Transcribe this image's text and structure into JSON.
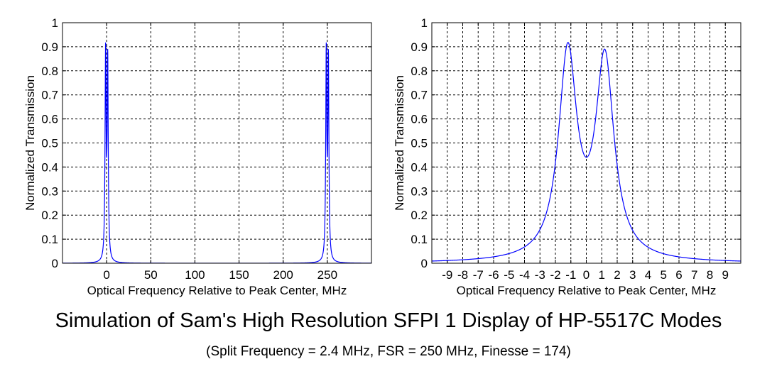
{
  "title": "Simulation of Sam's High Resolution SFPI 1 Display of HP-5517C Modes",
  "subtitle": "(Split Frequency = 2.4 MHz, FSR = 250 MHz, Finesse = 174)",
  "colors": {
    "curve": "#0000ff",
    "axes": "#000000",
    "grid": "#000000",
    "background": "#ffffff"
  },
  "chart_data": [
    {
      "type": "line",
      "xlabel": "Optical Frequency Relative to Peak Center, MHz",
      "ylabel": "Normalized Transmission",
      "xlim": [
        -50,
        300
      ],
      "ylim": [
        0,
        1
      ],
      "xticks": [
        0,
        50,
        100,
        150,
        200,
        250
      ],
      "xtick_labels": [
        "0",
        "50",
        "100",
        "150",
        "200",
        "250"
      ],
      "yticks": [
        0,
        0.1,
        0.2,
        0.3,
        0.4,
        0.5,
        0.6,
        0.7,
        0.8,
        0.9,
        1
      ],
      "ytick_labels": [
        "0",
        "0.1",
        "0.2",
        "0.3",
        "0.4",
        "0.5",
        "0.6",
        "0.7",
        "0.8",
        "0.9",
        "1"
      ],
      "grid": true,
      "series": [
        {
          "name": "transmission",
          "model": "airy_doublet",
          "split_mhz": 2.4,
          "fsr_mhz": 250,
          "finesse": 174,
          "amplitudes": [
            0.85,
            0.82
          ],
          "peaks": [
            {
              "x": -1.2,
              "y": 0.92
            },
            {
              "x": 1.2,
              "y": 0.89
            },
            {
              "x": 248.8,
              "y": 0.92
            },
            {
              "x": 251.2,
              "y": 0.89
            }
          ]
        }
      ]
    },
    {
      "type": "line",
      "xlabel": "Optical Frequency Relative to Peak Center, MHz",
      "ylabel": "Normalized Transmission",
      "xlim": [
        -10,
        10
      ],
      "ylim": [
        0,
        1
      ],
      "xticks": [
        -9,
        -8,
        -7,
        -6,
        -5,
        -4,
        -3,
        -2,
        -1,
        0,
        1,
        2,
        3,
        4,
        5,
        6,
        7,
        8,
        9
      ],
      "xtick_labels": [
        "-9",
        "-8",
        "-7",
        "-6",
        "-5",
        "-4",
        "-3",
        "-2",
        "-1",
        "0",
        "1",
        "2",
        "3",
        "4",
        "5",
        "6",
        "7",
        "8",
        "9"
      ],
      "yticks": [
        0,
        0.1,
        0.2,
        0.3,
        0.4,
        0.5,
        0.6,
        0.7,
        0.8,
        0.9,
        1
      ],
      "ytick_labels": [
        "0",
        "0.1",
        "0.2",
        "0.3",
        "0.4",
        "0.5",
        "0.6",
        "0.7",
        "0.8",
        "0.9",
        "1"
      ],
      "grid": true,
      "series": [
        {
          "name": "transmission",
          "model": "airy_doublet",
          "split_mhz": 2.4,
          "fsr_mhz": 250,
          "finesse": 174,
          "amplitudes": [
            0.85,
            0.82
          ],
          "peaks": [
            {
              "x": -1.2,
              "y": 0.92
            },
            {
              "x": 0,
              "y": 0.44
            },
            {
              "x": 1.2,
              "y": 0.89
            }
          ]
        }
      ]
    }
  ]
}
